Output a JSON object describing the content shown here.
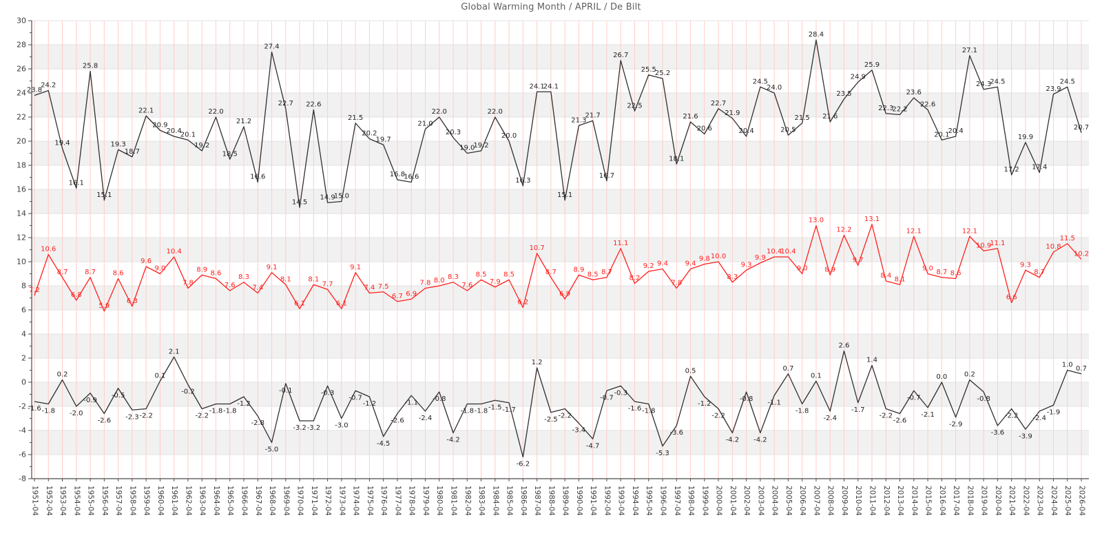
{
  "title": "Global Warming Month / APRIL / De Bilt",
  "chart_data": {
    "type": "line",
    "title": "Global Warming Month / APRIL / De Bilt",
    "xlabel": "",
    "ylabel": "",
    "ylim": [
      -8,
      30
    ],
    "ytick_step": 2,
    "grid": "on",
    "legend_position": "none",
    "x_labels": [
      "1951-04",
      "1952-04",
      "1953-04",
      "1954-04",
      "1955-04",
      "1956-04",
      "1957-04",
      "1958-04",
      "1959-04",
      "1960-04",
      "1961-04",
      "1962-04",
      "1963-04",
      "1964-04",
      "1965-04",
      "1966-04",
      "1967-04",
      "1968-04",
      "1969-04",
      "1970-04",
      "1971-04",
      "1972-04",
      "1973-04",
      "1974-04",
      "1975-04",
      "1976-04",
      "1977-04",
      "1978-04",
      "1979-04",
      "1980-04",
      "1981-04",
      "1982-04",
      "1983-04",
      "1984-04",
      "1985-04",
      "1986-04",
      "1987-04",
      "1988-04",
      "1989-04",
      "1990-04",
      "1991-04",
      "1992-04",
      "1993-04",
      "1994-04",
      "1995-04",
      "1996-04",
      "1997-04",
      "1998-04",
      "1999-04",
      "2000-04",
      "2001-04",
      "2002-04",
      "2003-04",
      "2004-04",
      "2005-04",
      "2006-04",
      "2007-04",
      "2008-04",
      "2009-04",
      "2010-04",
      "2011-04",
      "2012-04",
      "2013-04",
      "2014-04",
      "2015-04",
      "2016-04",
      "2017-04",
      "2018-04",
      "2019-04",
      "2020-04",
      "2021-04",
      "2022-04",
      "2023-04",
      "2024-04",
      "2025-04",
      "2026-04"
    ],
    "series": [
      {
        "name": "max-temp",
        "color": "#2f2f2f",
        "label_color": "#1f1f1f",
        "values": [
          23.8,
          24.2,
          19.4,
          16.1,
          25.8,
          15.1,
          19.3,
          18.7,
          22.1,
          20.9,
          20.4,
          20.1,
          19.2,
          22.0,
          18.5,
          21.2,
          16.6,
          27.4,
          22.7,
          14.5,
          22.6,
          14.9,
          15.0,
          21.5,
          20.2,
          19.7,
          16.8,
          16.6,
          21.0,
          22.0,
          20.3,
          19.0,
          19.2,
          22.0,
          20.0,
          16.3,
          24.1,
          24.1,
          15.1,
          21.3,
          21.7,
          16.7,
          26.7,
          22.5,
          25.5,
          25.2,
          18.1,
          21.6,
          20.6,
          22.7,
          21.9,
          20.4,
          24.5,
          24.0,
          20.5,
          21.5,
          28.4,
          21.6,
          23.5,
          24.9,
          25.9,
          22.3,
          22.2,
          23.6,
          22.6,
          20.1,
          20.4,
          27.1,
          24.3,
          24.5,
          17.2,
          19.9,
          17.4,
          23.9,
          24.5,
          20.7
        ]
      },
      {
        "name": "mean-temp",
        "color": "#ff1f1c",
        "label_color": "#ff1f1c",
        "values": [
          7.2,
          10.6,
          8.7,
          6.8,
          8.7,
          5.9,
          8.6,
          6.3,
          9.6,
          9.0,
          10.4,
          7.8,
          8.9,
          8.6,
          7.6,
          8.3,
          7.4,
          9.1,
          8.1,
          6.1,
          8.1,
          7.7,
          6.1,
          9.1,
          7.4,
          7.5,
          6.7,
          6.9,
          7.8,
          8.0,
          8.3,
          7.6,
          8.5,
          7.9,
          8.5,
          6.2,
          10.7,
          8.7,
          6.9,
          8.9,
          8.5,
          8.7,
          11.1,
          8.2,
          9.2,
          9.4,
          7.8,
          9.4,
          9.8,
          10.0,
          8.3,
          9.3,
          9.9,
          10.4,
          10.4,
          9.0,
          13.0,
          8.9,
          12.2,
          9.7,
          13.1,
          8.4,
          8.1,
          12.1,
          9.0,
          8.7,
          8.6,
          12.1,
          10.9,
          11.1,
          6.6,
          9.3,
          8.7,
          10.8,
          11.5,
          10.2
        ]
      },
      {
        "name": "min-temp",
        "color": "#2f2f2f",
        "label_color": "#1f1f1f",
        "values": [
          -1.6,
          -1.8,
          0.2,
          -2.0,
          -0.9,
          -2.6,
          -0.5,
          -2.3,
          -2.2,
          0.1,
          2.1,
          -0.2,
          -2.2,
          -1.8,
          -1.8,
          -1.2,
          -2.8,
          -5.0,
          -0.1,
          -3.2,
          -3.2,
          -0.3,
          -3.0,
          -0.7,
          -1.2,
          -4.5,
          -2.6,
          -1.1,
          -2.4,
          -0.8,
          -4.2,
          -1.8,
          -1.8,
          -1.5,
          -1.7,
          -6.2,
          1.2,
          -2.5,
          -2.2,
          -3.4,
          -4.7,
          -0.7,
          -0.3,
          -1.6,
          -1.8,
          -5.3,
          -3.6,
          0.5,
          -1.2,
          -2.2,
          -4.2,
          -0.8,
          -4.2,
          -1.1,
          0.7,
          -1.8,
          0.1,
          -2.4,
          2.6,
          -1.7,
          1.4,
          -2.2,
          -2.6,
          -0.7,
          -2.1,
          0.0,
          -2.9,
          0.2,
          -0.8,
          -3.6,
          -2.2,
          -3.9,
          -2.4,
          -1.9,
          1.0,
          0.7
        ]
      }
    ],
    "colors": {
      "band_fill": "#f1f1f1",
      "h_grid": "#e2e2e2",
      "v_grid": "#ffcdc8",
      "spine": "#4a4a4a",
      "tick_text": "#3c3c3c",
      "title_text": "#5f5f5f"
    }
  }
}
